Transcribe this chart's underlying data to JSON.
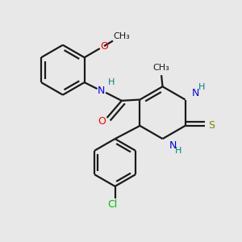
{
  "bg_color": "#e8e8e8",
  "bond_color": "#1a1a1a",
  "n_color": "#0000ff",
  "o_color": "#ff0000",
  "s_color": "#808000",
  "cl_color": "#00bb00",
  "h_color": "#008080",
  "lw": 1.6,
  "figsize": [
    3.0,
    3.0
  ],
  "dpi": 100,
  "xlim": [
    0,
    10
  ],
  "ylim": [
    0,
    10
  ]
}
